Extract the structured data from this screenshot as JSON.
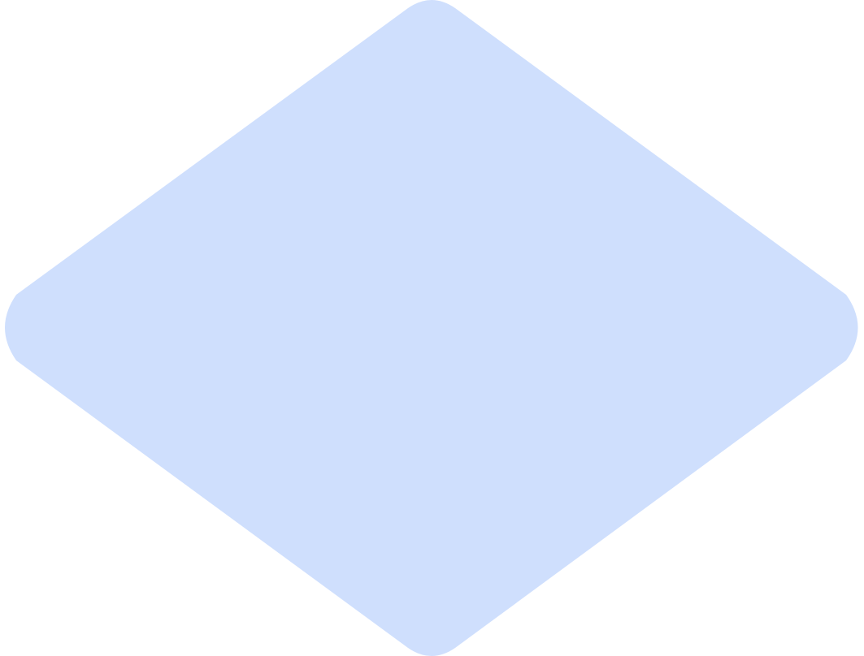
{
  "shape": {
    "kind": "diamond",
    "fill": "#cfdffd"
  },
  "background": "#ffffff"
}
